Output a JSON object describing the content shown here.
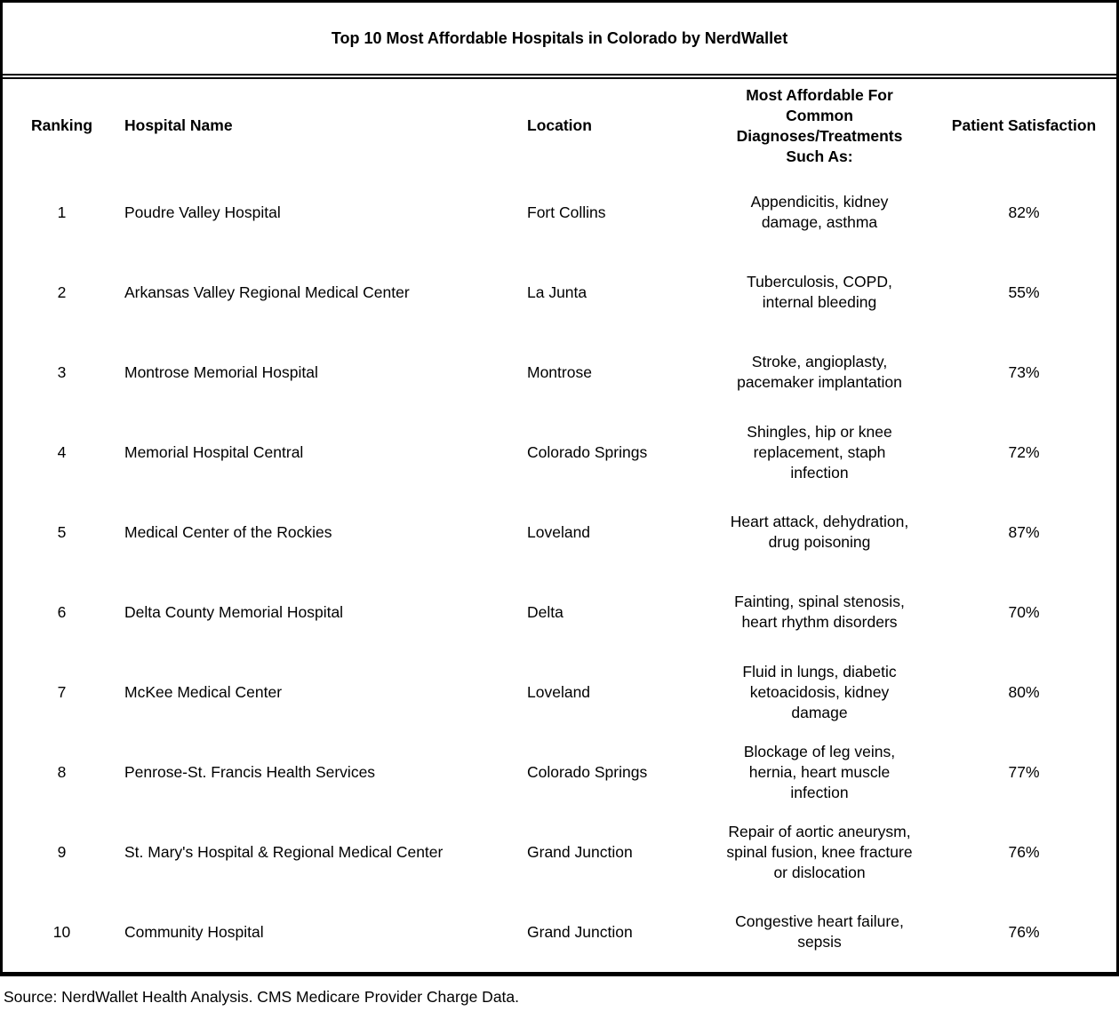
{
  "title": "Top 10 Most Affordable Hospitals in Colorado by NerdWallet",
  "source_note": "Source: NerdWallet Health Analysis. CMS Medicare Provider Charge Data.",
  "colors": {
    "background": "#ffffff",
    "border": "#000000",
    "text": "#000000"
  },
  "chart_data": {
    "type": "table",
    "title": "Top 10 Most Affordable Hospitals in Colorado by NerdWallet",
    "columns": [
      "Ranking",
      "Hospital Name",
      "Location",
      "Most Affordable For\nCommon\nDiagnoses/Treatments\nSuch As:",
      "Patient Satisfaction"
    ],
    "rows": [
      [
        "1",
        "Poudre Valley Hospital",
        "Fort Collins",
        "Appendicitis, kidney\ndamage, asthma",
        "82%"
      ],
      [
        "2",
        "Arkansas Valley Regional Medical Center",
        "La Junta",
        "Tuberculosis, COPD,\ninternal bleeding",
        "55%"
      ],
      [
        "3",
        "Montrose Memorial Hospital",
        "Montrose",
        "Stroke, angioplasty,\npacemaker implantation",
        "73%"
      ],
      [
        "4",
        "Memorial Hospital Central",
        "Colorado Springs",
        "Shingles, hip or knee\nreplacement, staph\ninfection",
        "72%"
      ],
      [
        "5",
        "Medical Center of the Rockies",
        "Loveland",
        "Heart attack, dehydration,\ndrug poisoning",
        "87%"
      ],
      [
        "6",
        "Delta County Memorial Hospital",
        "Delta",
        "Fainting, spinal stenosis,\nheart rhythm disorders",
        "70%"
      ],
      [
        "7",
        "McKee Medical Center",
        "Loveland",
        "Fluid in lungs, diabetic\nketoacidosis, kidney\ndamage",
        "80%"
      ],
      [
        "8",
        "Penrose-St. Francis Health Services",
        "Colorado Springs",
        "Blockage of leg veins,\nhernia, heart muscle\ninfection",
        "77%"
      ],
      [
        "9",
        "St. Mary's Hospital & Regional Medical Center",
        "Grand Junction",
        "Repair of aortic aneurysm,\nspinal fusion, knee fracture\nor dislocation",
        "76%"
      ],
      [
        "10",
        "Community Hospital",
        "Grand Junction",
        "Congestive heart failure,\nsepsis",
        "76%"
      ]
    ],
    "source": "Source: NerdWallet Health Analysis. CMS Medicare Provider Charge Data."
  }
}
